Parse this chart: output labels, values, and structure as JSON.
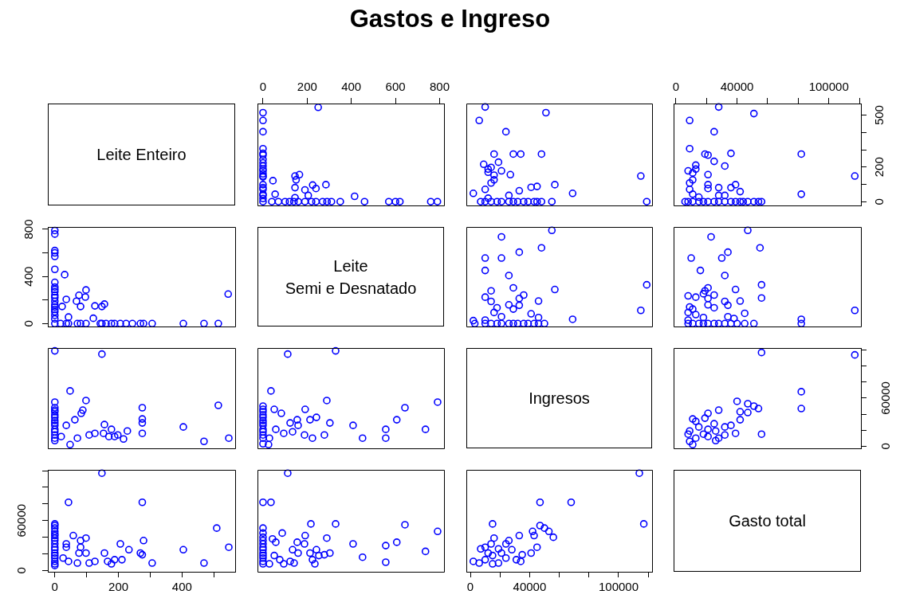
{
  "chart_data": [
    {
      "type": "other",
      "title": "Gastos e Ingreso",
      "annotations": [
        "Leite Enteiro"
      ]
    },
    {
      "type": "scatter",
      "color": "#0000ff",
      "marker": "circle",
      "tick_labels": "x",
      "xlim": [
        -25,
        820
      ],
      "ylim": [
        -22,
        567
      ],
      "xticks": [
        0,
        200,
        400,
        600,
        800
      ],
      "x": [
        790,
        760,
        620,
        600,
        570,
        460,
        350,
        310,
        290,
        270,
        240,
        220,
        190,
        160,
        140,
        120,
        100,
        70,
        40,
        0,
        0,
        0,
        0,
        0,
        0,
        0,
        0,
        0,
        0,
        0,
        0,
        0,
        0,
        0,
        0,
        0,
        0,
        0,
        0,
        0,
        250,
        415,
        205,
        190,
        145,
        225,
        285,
        240,
        145,
        165,
        150,
        55,
        45,
        145
      ],
      "values": [
        0,
        0,
        0,
        0,
        0,
        0,
        0,
        0,
        0,
        0,
        0,
        0,
        0,
        0,
        0,
        0,
        0,
        0,
        0,
        0,
        18,
        36,
        43,
        71,
        81,
        98,
        143,
        148,
        161,
        178,
        188,
        206,
        224,
        244,
        269,
        279,
        306,
        404,
        469,
        514,
        545,
        31,
        36,
        68,
        81,
        96,
        98,
        76,
        148,
        156,
        126,
        43,
        121,
        23
      ]
    },
    {
      "type": "scatter",
      "color": "#0000ff",
      "marker": "circle",
      "tick_labels": false,
      "xlim": [
        -2700,
        122600
      ],
      "ylim": [
        -22,
        567
      ],
      "x": [
        119000,
        55000,
        48000,
        45000,
        43000,
        39000,
        36000,
        32000,
        29000,
        26000,
        21000,
        18000,
        14000,
        10000,
        7000,
        115000,
        69000,
        57000,
        48000,
        34000,
        29000,
        51000,
        16000,
        24000,
        6000,
        10000,
        2000,
        41000,
        45000,
        33000,
        26000,
        12000,
        10000,
        14000,
        16000,
        16000,
        12000,
        21000,
        12000,
        14000,
        9000,
        19000,
        27000
      ],
      "values": [
        0,
        0,
        0,
        0,
        0,
        0,
        0,
        0,
        0,
        0,
        0,
        0,
        0,
        0,
        0,
        148,
        48,
        98,
        275,
        275,
        275,
        514,
        275,
        404,
        469,
        547,
        48,
        83,
        88,
        63,
        36,
        20,
        71,
        108,
        126,
        153,
        170,
        178,
        188,
        198,
        216,
        228,
        156
      ]
    },
    {
      "type": "scatter",
      "color": "#0000ff",
      "marker": "circle",
      "xlim": [
        -1500,
        121000
      ],
      "ylim": [
        -22,
        567
      ],
      "xticks": [
        0,
        {
          "value": 20000,
          "label": null
        },
        40000,
        {
          "value": 60000,
          "label": null
        },
        {
          "value": 80000,
          "label": null
        },
        100000,
        {
          "value": 120000,
          "label": null
        }
      ],
      "yticks": [
        0,
        {
          "value": 100,
          "label": null
        },
        200,
        {
          "value": 300,
          "label": null
        },
        {
          "value": 400,
          "label": null
        },
        500
      ],
      "x": [
        56000,
        54000,
        51000,
        47000,
        44000,
        42000,
        39000,
        36000,
        32000,
        28000,
        25000,
        21000,
        18000,
        15000,
        11000,
        8000,
        6000,
        117000,
        82000,
        82000,
        42000,
        39000,
        36000,
        28000,
        21000,
        21000,
        28000,
        32000,
        15000,
        11000,
        9000,
        9000,
        11000,
        21000,
        11000,
        8000,
        13000,
        32000,
        13000,
        25000,
        21000,
        19000,
        36000,
        9000,
        25000,
        9000,
        51000,
        28000
      ],
      "values": [
        0,
        0,
        0,
        0,
        0,
        0,
        0,
        0,
        0,
        0,
        0,
        0,
        0,
        0,
        0,
        0,
        0,
        148,
        43,
        275,
        58,
        98,
        81,
        81,
        76,
        98,
        36,
        36,
        26,
        43,
        71,
        108,
        126,
        156,
        166,
        178,
        188,
        206,
        211,
        233,
        269,
        275,
        279,
        306,
        404,
        469,
        509,
        547
      ]
    },
    {
      "type": "scatter",
      "color": "#0000ff",
      "marker": "circle",
      "tick_labels": "y",
      "xlim": [
        -22,
        567
      ],
      "ylim": [
        -25,
        820
      ],
      "yticks": [
        0,
        {
          "value": 200,
          "label": null
        },
        400,
        {
          "value": 600,
          "label": null
        },
        800
      ],
      "x": [
        0,
        0,
        0,
        0,
        0,
        0,
        0,
        0,
        0,
        0,
        0,
        0,
        0,
        0,
        0,
        0,
        0,
        0,
        0,
        0,
        18,
        36,
        43,
        71,
        81,
        98,
        143,
        148,
        161,
        178,
        188,
        206,
        224,
        244,
        269,
        279,
        306,
        404,
        469,
        514,
        545,
        31,
        36,
        68,
        81,
        96,
        98,
        76,
        148,
        156,
        126,
        43,
        121,
        23
      ],
      "values": [
        790,
        760,
        620,
        600,
        570,
        460,
        350,
        310,
        290,
        270,
        240,
        220,
        190,
        160,
        140,
        120,
        100,
        70,
        40,
        0,
        0,
        0,
        0,
        0,
        0,
        0,
        0,
        0,
        0,
        0,
        0,
        0,
        0,
        0,
        0,
        0,
        0,
        0,
        0,
        0,
        250,
        415,
        205,
        190,
        145,
        225,
        285,
        240,
        145,
        165,
        150,
        55,
        45,
        145
      ]
    },
    {
      "type": "other",
      "annotations": [
        "Leite",
        "Semi e Desnatado"
      ]
    },
    {
      "type": "scatter",
      "color": "#0000ff",
      "marker": "circle",
      "tick_labels": false,
      "xlim": [
        -2700,
        122600
      ],
      "ylim": [
        -25,
        820
      ],
      "x": [
        50000,
        46000,
        43000,
        39000,
        36000,
        32000,
        29000,
        26000,
        21000,
        18000,
        14000,
        10000,
        3000,
        115000,
        119000,
        69000,
        46000,
        57000,
        46000,
        41000,
        33000,
        33000,
        36000,
        29000,
        26000,
        21000,
        16000,
        18000,
        14000,
        10000,
        14000,
        29000,
        26000,
        10000,
        21000,
        10000,
        33000,
        48000,
        21000,
        55000,
        10000,
        2000
      ],
      "values": [
        0,
        0,
        0,
        0,
        0,
        0,
        0,
        0,
        0,
        0,
        0,
        0,
        0,
        112,
        329,
        36,
        51,
        289,
        191,
        83,
        155,
        213,
        242,
        123,
        159,
        58,
        94,
        134,
        188,
        224,
        278,
        303,
        408,
        451,
        556,
        556,
        606,
        643,
        736,
        791,
        29,
        25
      ]
    },
    {
      "type": "scatter",
      "color": "#0000ff",
      "marker": "circle",
      "tick_labels": false,
      "xlim": [
        -1500,
        121000
      ],
      "ylim": [
        -25,
        820
      ],
      "x": [
        82000,
        51000,
        45000,
        40000,
        36000,
        32000,
        28000,
        25000,
        21000,
        18000,
        15000,
        11000,
        8000,
        117000,
        82000,
        45000,
        38000,
        34000,
        8000,
        18000,
        13000,
        8000,
        11000,
        25000,
        34000,
        21000,
        32000,
        42000,
        21000,
        56000,
        13000,
        8000,
        25000,
        18000,
        19000,
        39000,
        21000,
        56000,
        32000,
        16000,
        30000,
        10000,
        34000,
        55000,
        23000,
        47000,
        9000
      ],
      "values": [
        0,
        0,
        0,
        0,
        0,
        0,
        0,
        0,
        0,
        0,
        0,
        0,
        0,
        112,
        36,
        87,
        43,
        58,
        29,
        51,
        76,
        94,
        123,
        134,
        155,
        159,
        188,
        191,
        213,
        217,
        224,
        235,
        242,
        253,
        278,
        289,
        303,
        329,
        408,
        451,
        556,
        556,
        606,
        643,
        736,
        791,
        141
      ]
    },
    {
      "type": "scatter",
      "color": "#0000ff",
      "marker": "circle",
      "tick_labels": false,
      "xlim": [
        -22,
        567
      ],
      "ylim": [
        -2700,
        122600
      ],
      "x": [
        0,
        0,
        0,
        0,
        0,
        0,
        0,
        0,
        0,
        0,
        0,
        0,
        0,
        0,
        0,
        148,
        48,
        98,
        275,
        275,
        275,
        514,
        275,
        404,
        469,
        547,
        48,
        83,
        88,
        63,
        36,
        20,
        71,
        108,
        126,
        153,
        170,
        178,
        188,
        198,
        216,
        228,
        156
      ],
      "values": [
        119000,
        55000,
        48000,
        45000,
        43000,
        39000,
        36000,
        32000,
        29000,
        26000,
        21000,
        18000,
        14000,
        10000,
        7000,
        115000,
        69000,
        57000,
        48000,
        34000,
        29000,
        51000,
        16000,
        24000,
        6000,
        10000,
        2000,
        41000,
        45000,
        33000,
        26000,
        12000,
        10000,
        14000,
        16000,
        16000,
        12000,
        21000,
        12000,
        14000,
        9000,
        19000,
        27000
      ]
    },
    {
      "type": "scatter",
      "color": "#0000ff",
      "marker": "circle",
      "tick_labels": false,
      "xlim": [
        -25,
        820
      ],
      "ylim": [
        -2700,
        122600
      ],
      "x": [
        0,
        0,
        0,
        0,
        0,
        0,
        0,
        0,
        0,
        0,
        0,
        0,
        0,
        112,
        329,
        36,
        51,
        289,
        191,
        83,
        155,
        213,
        242,
        123,
        159,
        58,
        94,
        134,
        188,
        224,
        278,
        303,
        408,
        451,
        556,
        556,
        606,
        643,
        736,
        791,
        29,
        25
      ],
      "values": [
        50000,
        46000,
        43000,
        39000,
        36000,
        32000,
        29000,
        26000,
        21000,
        18000,
        14000,
        10000,
        3000,
        115000,
        119000,
        69000,
        46000,
        57000,
        46000,
        41000,
        33000,
        33000,
        36000,
        29000,
        26000,
        21000,
        16000,
        18000,
        14000,
        10000,
        14000,
        29000,
        26000,
        10000,
        21000,
        10000,
        33000,
        48000,
        21000,
        55000,
        10000,
        2000
      ]
    },
    {
      "type": "other",
      "annotations": [
        "Ingresos"
      ]
    },
    {
      "type": "scatter",
      "color": "#0000ff",
      "marker": "circle",
      "tick_labels": "y",
      "xlim": [
        -1500,
        121000
      ],
      "ylim": [
        -2700,
        122600
      ],
      "yticks": [
        0,
        {
          "value": 20000,
          "label": null
        },
        {
          "value": 40000,
          "label": null
        },
        60000,
        {
          "value": 80000,
          "label": null
        },
        {
          "value": 100000,
          "label": null
        },
        {
          "value": 120000,
          "label": null
        }
      ],
      "x": [
        117000,
        56000,
        82000,
        82000,
        54000,
        51000,
        47000,
        40000,
        47000,
        42000,
        28000,
        21000,
        19000,
        42000,
        13000,
        25000,
        32000,
        36000,
        26000,
        21000,
        56000,
        39000,
        32000,
        28000,
        26000,
        21000,
        18000,
        13000,
        9000,
        11000,
        8000,
        9000,
        15000,
        11000
      ],
      "values": [
        114000,
        117000,
        68000,
        47000,
        47000,
        50000,
        53000,
        56000,
        42000,
        43000,
        45000,
        41000,
        35000,
        33000,
        31000,
        28000,
        24000,
        26000,
        19000,
        21000,
        15000,
        16000,
        14000,
        10000,
        7000,
        12000,
        15000,
        10000,
        6000,
        2000,
        15000,
        19000,
        24000,
        34000
      ]
    },
    {
      "type": "scatter",
      "color": "#0000ff",
      "marker": "circle",
      "xlim": [
        -22,
        567
      ],
      "ylim": [
        -1500,
        121000
      ],
      "xticks": [
        0,
        {
          "value": 100,
          "label": null
        },
        200,
        {
          "value": 300,
          "label": null
        },
        400,
        {
          "value": 500,
          "label": null
        }
      ],
      "yticks": [
        0,
        {
          "value": 20000,
          "label": null
        },
        {
          "value": 40000,
          "label": null
        },
        60000,
        {
          "value": 80000,
          "label": null
        },
        {
          "value": 100000,
          "label": null
        },
        {
          "value": 120000,
          "label": null
        }
      ],
      "x": [
        0,
        0,
        0,
        0,
        0,
        0,
        0,
        0,
        0,
        0,
        0,
        0,
        0,
        0,
        0,
        0,
        0,
        148,
        43,
        275,
        58,
        98,
        81,
        81,
        76,
        98,
        36,
        36,
        26,
        43,
        71,
        108,
        126,
        156,
        166,
        178,
        188,
        206,
        211,
        233,
        269,
        275,
        279,
        306,
        404,
        469,
        509,
        547
      ],
      "values": [
        56000,
        54000,
        51000,
        47000,
        44000,
        42000,
        39000,
        36000,
        32000,
        28000,
        25000,
        21000,
        18000,
        15000,
        11000,
        8000,
        6000,
        117000,
        82000,
        82000,
        42000,
        39000,
        36000,
        28000,
        21000,
        21000,
        28000,
        32000,
        15000,
        11000,
        9000,
        9000,
        11000,
        21000,
        11000,
        8000,
        13000,
        32000,
        13000,
        25000,
        21000,
        19000,
        36000,
        9000,
        25000,
        9000,
        51000,
        28000
      ]
    },
    {
      "type": "scatter",
      "color": "#0000ff",
      "marker": "circle",
      "tick_labels": false,
      "xlim": [
        -25,
        820
      ],
      "ylim": [
        -1500,
        121000
      ],
      "x": [
        0,
        0,
        0,
        0,
        0,
        0,
        0,
        0,
        0,
        0,
        0,
        0,
        0,
        112,
        36,
        87,
        43,
        58,
        29,
        51,
        76,
        94,
        123,
        134,
        155,
        159,
        188,
        191,
        213,
        217,
        224,
        235,
        242,
        253,
        278,
        289,
        303,
        329,
        408,
        451,
        556,
        556,
        606,
        643,
        736,
        791,
        141
      ],
      "values": [
        82000,
        51000,
        45000,
        40000,
        36000,
        32000,
        28000,
        25000,
        21000,
        18000,
        15000,
        11000,
        8000,
        117000,
        82000,
        45000,
        38000,
        34000,
        8000,
        18000,
        13000,
        8000,
        11000,
        25000,
        34000,
        21000,
        32000,
        42000,
        21000,
        56000,
        13000,
        8000,
        25000,
        18000,
        19000,
        39000,
        21000,
        56000,
        32000,
        16000,
        30000,
        10000,
        34000,
        55000,
        23000,
        47000,
        9000
      ]
    },
    {
      "type": "scatter",
      "color": "#0000ff",
      "marker": "circle",
      "tick_labels": "x",
      "xlim": [
        -2700,
        122600
      ],
      "ylim": [
        -1500,
        121000
      ],
      "xticks": [
        0,
        {
          "value": 20000,
          "label": null
        },
        40000,
        {
          "value": 60000,
          "label": null
        },
        {
          "value": 80000,
          "label": null
        },
        100000,
        {
          "value": 120000,
          "label": null
        }
      ],
      "x": [
        114000,
        117000,
        68000,
        47000,
        47000,
        50000,
        53000,
        56000,
        42000,
        43000,
        45000,
        41000,
        35000,
        33000,
        31000,
        28000,
        24000,
        26000,
        19000,
        21000,
        15000,
        16000,
        14000,
        10000,
        7000,
        12000,
        15000,
        10000,
        6000,
        2000,
        15000,
        19000,
        24000,
        34000
      ],
      "values": [
        117000,
        56000,
        82000,
        82000,
        54000,
        51000,
        47000,
        40000,
        47000,
        42000,
        28000,
        21000,
        19000,
        42000,
        13000,
        25000,
        32000,
        36000,
        26000,
        21000,
        56000,
        39000,
        32000,
        28000,
        26000,
        21000,
        18000,
        13000,
        9000,
        11000,
        8000,
        9000,
        15000,
        11000
      ]
    },
    {
      "type": "other",
      "annotations": [
        "Gasto total"
      ]
    }
  ]
}
